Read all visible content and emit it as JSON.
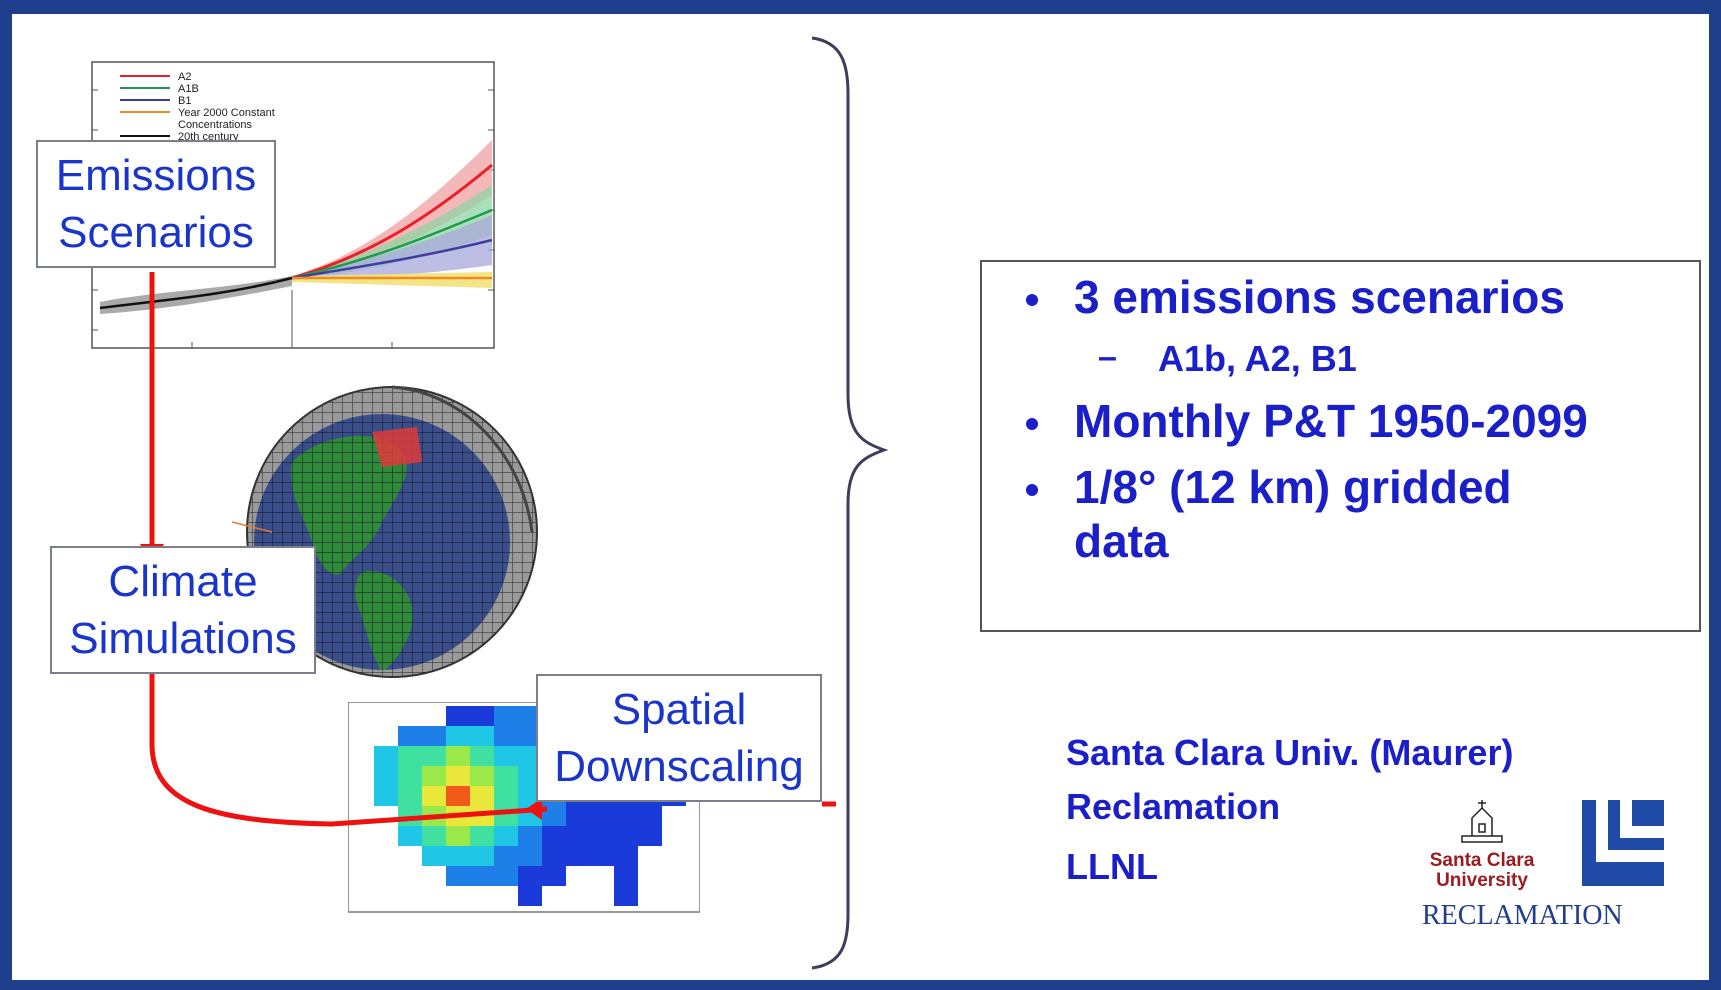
{
  "diagram": {
    "emissions_box": {
      "line1": "Emissions",
      "line2": "Scenarios"
    },
    "climate_box": {
      "line1": "Climate",
      "line2": "Simulations"
    },
    "downscaling_box": {
      "line1": "Spatial",
      "line2": "Downscaling"
    }
  },
  "chart_legend": {
    "items": [
      {
        "label": "A2",
        "color": "#e8202a"
      },
      {
        "label": "A1B",
        "color": "#1f9a4a"
      },
      {
        "label": "B1",
        "color": "#3d3fa0"
      },
      {
        "label": "Year 2000 Constant",
        "label2": "Concentrations",
        "color": "#f08a1c"
      },
      {
        "label": "20th century",
        "color": "#111111"
      }
    ]
  },
  "bullets": {
    "b1": "3 emissions scenarios",
    "b1_sub": "A1b, A2, B1",
    "b2": "Monthly P&T 1950-2099",
    "b3_line1": "1/8° (12 km) gridded",
    "b3_line2": "data"
  },
  "credits": {
    "line1": "Santa Clara Univ. (Maurer)",
    "line2": "Reclamation",
    "line3": "LLNL"
  },
  "logos": {
    "scu_text1": "Santa Clara",
    "scu_text2": "University",
    "reclamation_text": "RECLAMATION"
  },
  "colors": {
    "frame": "#1f3e8c",
    "text_blue": "#1a1fc8",
    "arrow_red": "#ee1111",
    "logo_red": "#9b1b1e",
    "logo_blue": "#1f4aa8"
  }
}
